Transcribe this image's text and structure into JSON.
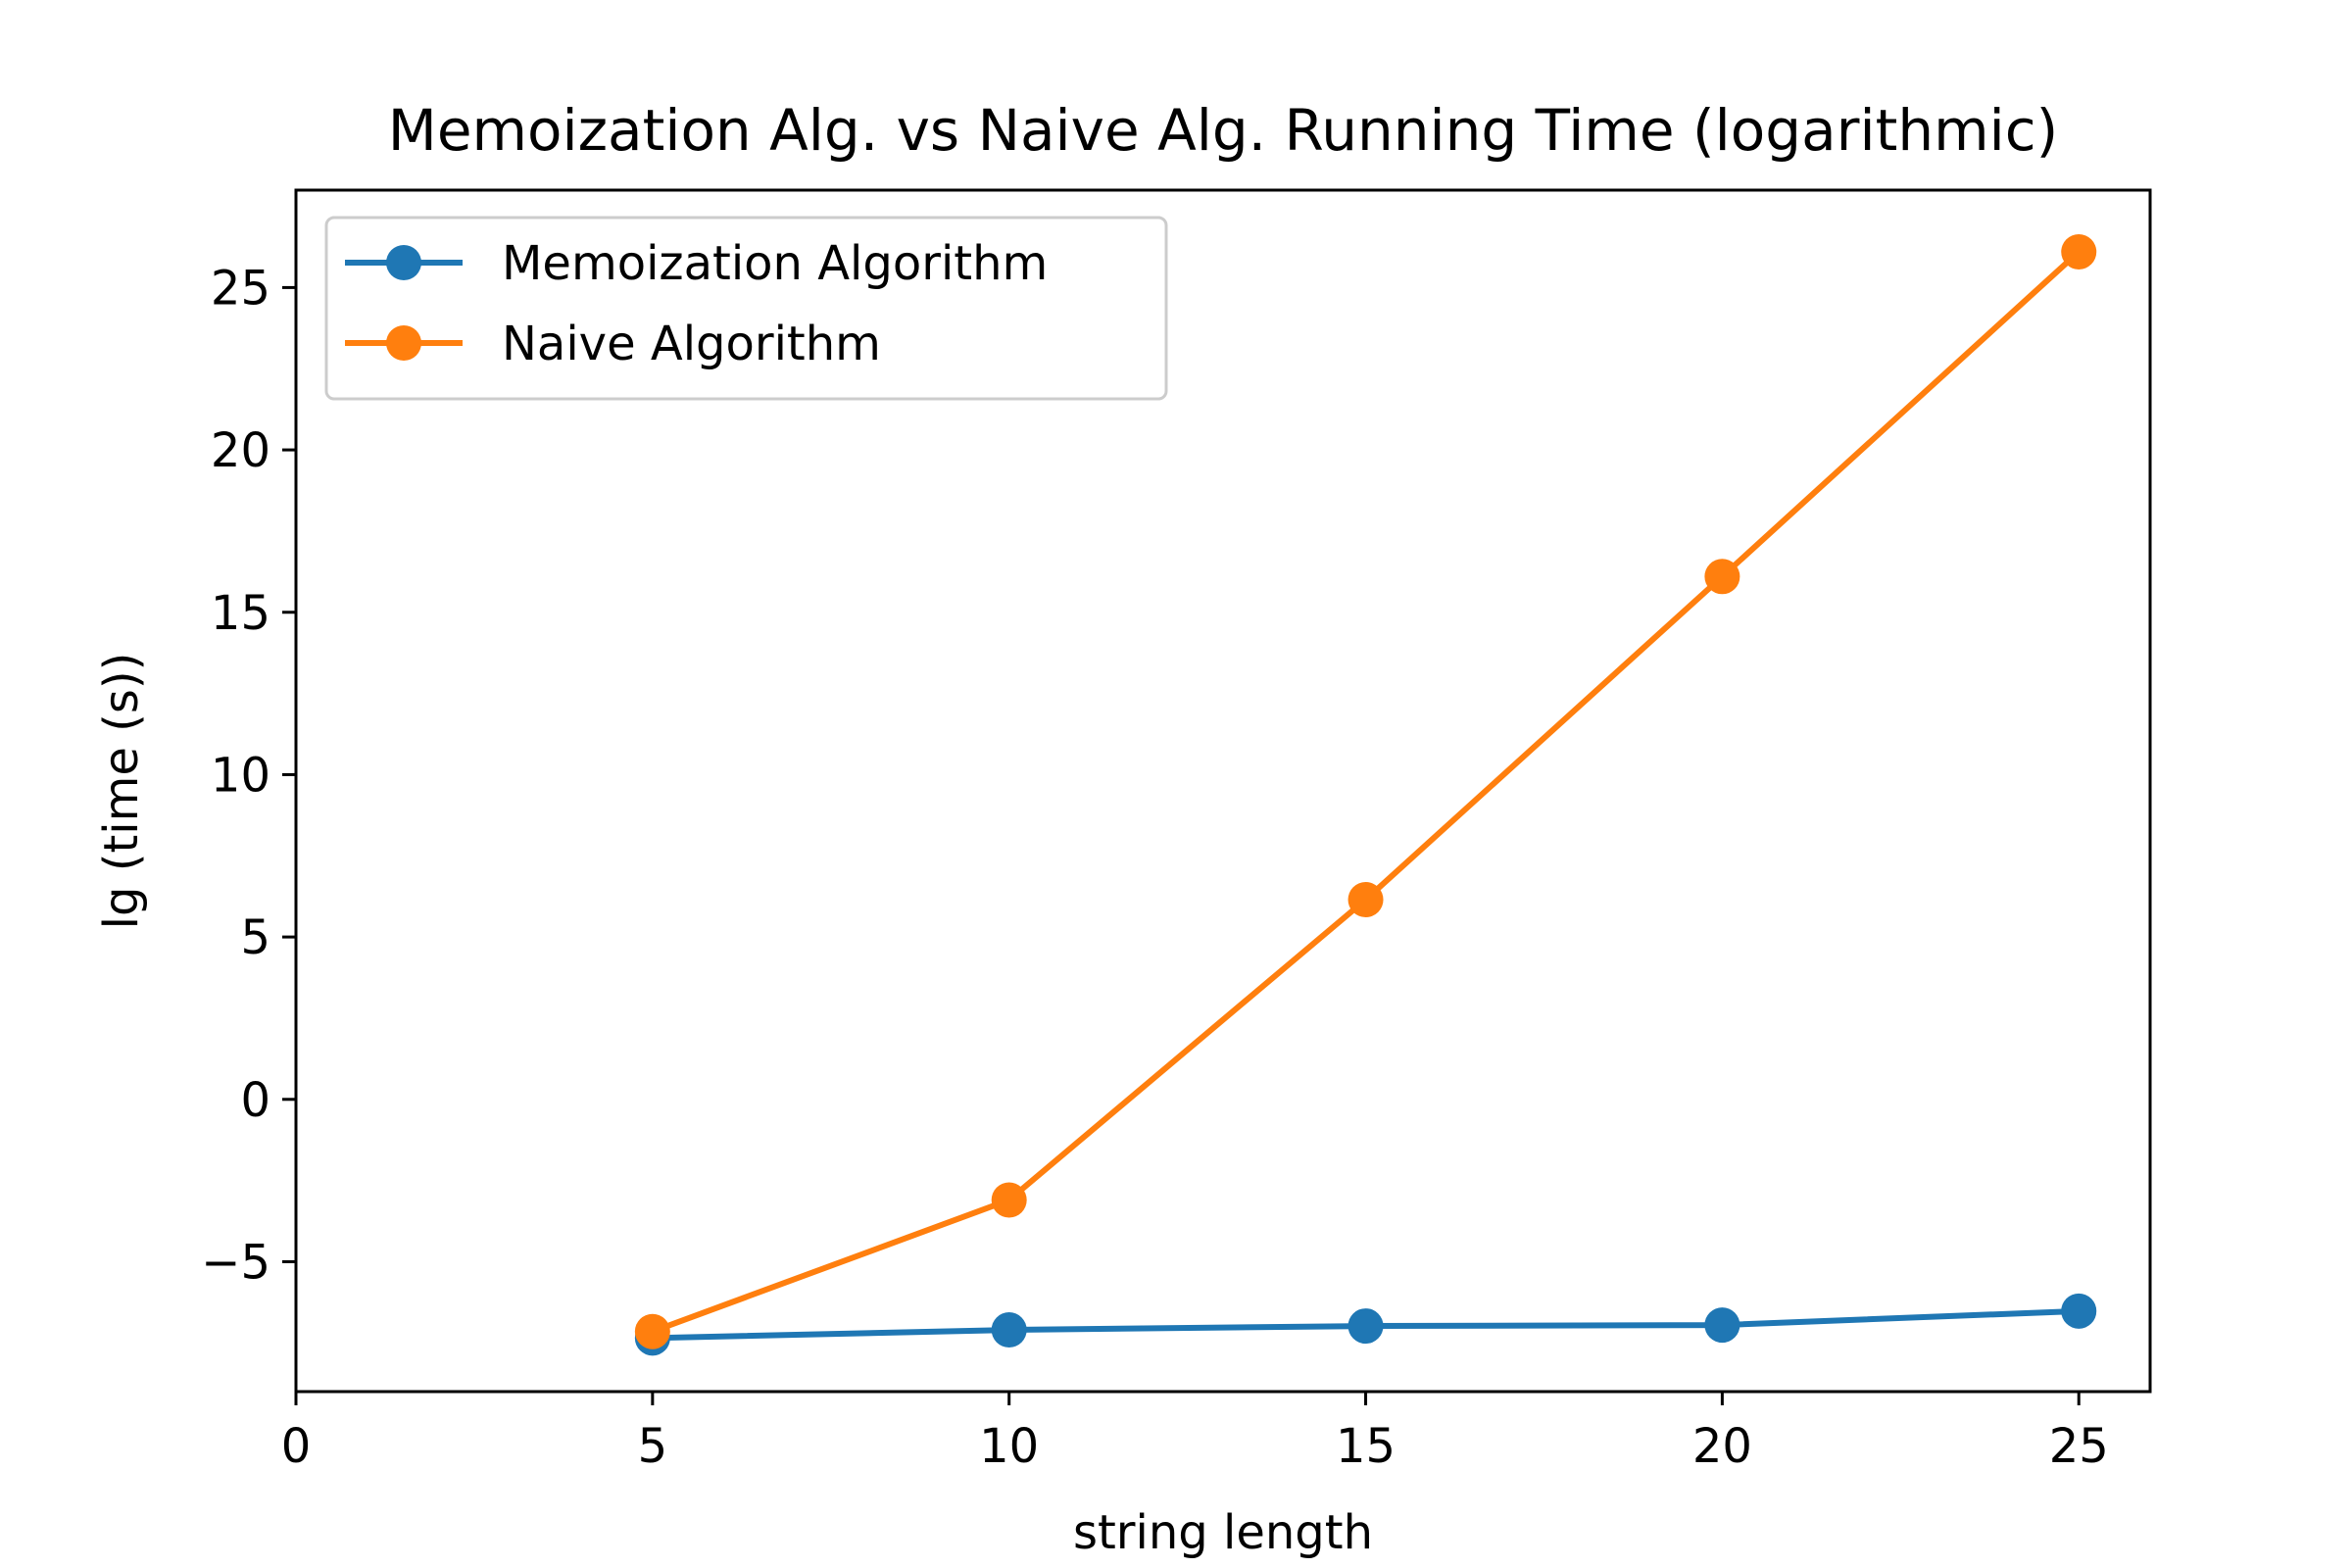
{
  "chart_data": {
    "type": "line",
    "title": "Memoization Alg. vs Naive Alg. Running Time (logarithmic)",
    "xlabel": "string length",
    "ylabel": "lg (time (s))",
    "xlim": [
      0,
      26
    ],
    "ylim": [
      -9,
      28
    ],
    "xticks": [
      0,
      5,
      10,
      15,
      20,
      25
    ],
    "yticks": [
      -5,
      0,
      5,
      10,
      15,
      20,
      25
    ],
    "grid": false,
    "legend_position": "top-left",
    "series": [
      {
        "name": "Memoization Algorithm",
        "color": "#1f77b4",
        "marker": "circle",
        "x": [
          5,
          10,
          15,
          20,
          25
        ],
        "y": [
          -7.35,
          -7.1,
          -6.98,
          -6.95,
          -6.52
        ]
      },
      {
        "name": "Naive Algorithm",
        "color": "#ff7f0e",
        "marker": "circle",
        "x": [
          5,
          10,
          15,
          20,
          25
        ],
        "y": [
          -7.15,
          -3.1,
          6.15,
          16.1,
          26.1
        ]
      }
    ]
  }
}
